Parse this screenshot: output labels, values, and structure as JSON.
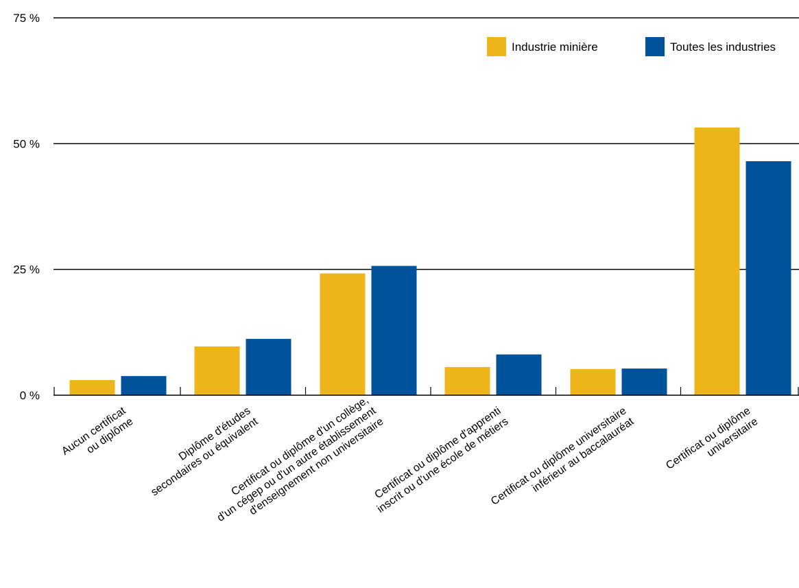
{
  "chart_data": {
    "type": "bar",
    "title": "",
    "xlabel": "",
    "ylabel": "",
    "ylim": [
      0,
      75
    ],
    "yticks": [
      0,
      25,
      50,
      75
    ],
    "ytick_suffix": " %",
    "grid": true,
    "legend_position": "top-right",
    "categories": [
      [
        "Aucun certificat",
        "ou diplôme"
      ],
      [
        "Diplôme d'études",
        "secondaires ou équivalent"
      ],
      [
        "Certificat ou diplôme d'un collège,",
        "d'un cégep ou d'un autre établissement",
        "d'enseignement non universitaire"
      ],
      [
        "Certificat ou diplôme d'apprenti",
        "inscrit ou d'une école de métiers"
      ],
      [
        "Certificat ou diplôme universitaire",
        "inférieur au baccalauréat"
      ],
      [
        "Certificat ou diplôme",
        "universitaire"
      ]
    ],
    "series": [
      {
        "name": "Industrie minière",
        "color": "#EDB51A",
        "values": [
          3.0,
          9.7,
          24.2,
          5.6,
          5.2,
          53.2
        ]
      },
      {
        "name": "Toutes les industries",
        "color": "#00529B",
        "values": [
          3.8,
          11.2,
          25.7,
          8.1,
          5.3,
          46.5
        ]
      }
    ]
  }
}
